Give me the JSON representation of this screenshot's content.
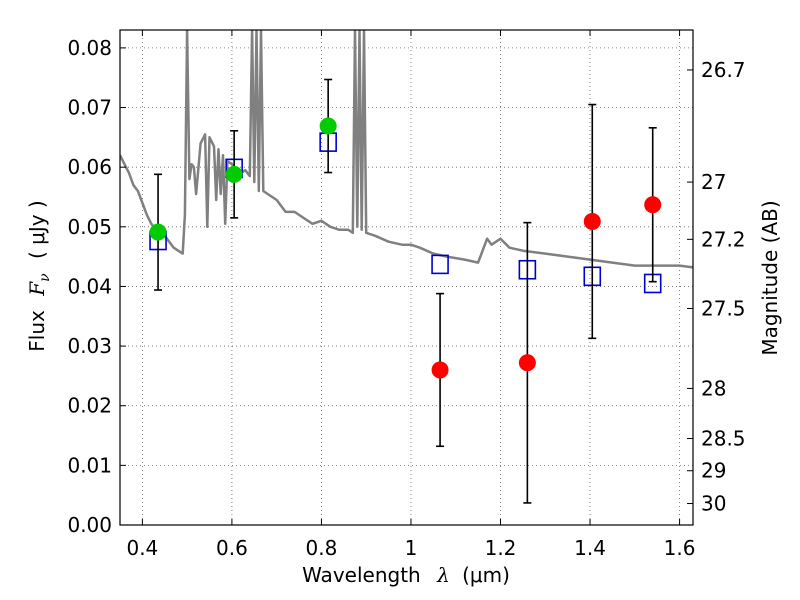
{
  "chart_data": {
    "type": "scatter",
    "xlabel_text": "Wavelength",
    "xlabel_symbol": "λ",
    "xlabel_unit": "(μm)",
    "ylabel_text": "Flux",
    "ylabel_symbol": "F",
    "ylabel_subscript": "ν",
    "ylabel_unit": "( μJy )",
    "y2label": "Magnitude (AB)",
    "xlim": [
      0.35,
      1.63
    ],
    "ylim": [
      0.0,
      0.083
    ],
    "grid": true,
    "x_ticks": [
      {
        "value": 0.4,
        "label": "0.4"
      },
      {
        "value": 0.6,
        "label": "0.6"
      },
      {
        "value": 0.8,
        "label": "0.8"
      },
      {
        "value": 1.0,
        "label": "1"
      },
      {
        "value": 1.2,
        "label": "1.2"
      },
      {
        "value": 1.4,
        "label": "1.4"
      },
      {
        "value": 1.6,
        "label": "1.6"
      }
    ],
    "y_ticks": [
      {
        "value": 0.0,
        "label": "0.00"
      },
      {
        "value": 0.01,
        "label": "0.01"
      },
      {
        "value": 0.02,
        "label": "0.02"
      },
      {
        "value": 0.03,
        "label": "0.03"
      },
      {
        "value": 0.04,
        "label": "0.04"
      },
      {
        "value": 0.05,
        "label": "0.05"
      },
      {
        "value": 0.06,
        "label": "0.06"
      },
      {
        "value": 0.07,
        "label": "0.07"
      },
      {
        "value": 0.08,
        "label": "0.08"
      }
    ],
    "mag_ticks": [
      {
        "flux": 0.0763,
        "label": "26.7"
      },
      {
        "flux": 0.0575,
        "label": "27"
      },
      {
        "flux": 0.0479,
        "label": "27.2"
      },
      {
        "flux": 0.0363,
        "label": "27.5"
      },
      {
        "flux": 0.0229,
        "label": "28"
      },
      {
        "flux": 0.0145,
        "label": "28.5"
      },
      {
        "flux": 0.0091,
        "label": "29"
      },
      {
        "flux": 0.0036,
        "label": "30"
      }
    ],
    "series": [
      {
        "name": "model-template-spectrum",
        "kind": "line",
        "color": "#808080",
        "x": [
          0.35,
          0.36,
          0.37,
          0.38,
          0.39,
          0.4,
          0.41,
          0.42,
          0.43,
          0.44,
          0.45,
          0.46,
          0.47,
          0.48,
          0.49,
          0.495,
          0.5,
          0.505,
          0.51,
          0.515,
          0.52,
          0.53,
          0.54,
          0.545,
          0.55,
          0.56,
          0.565,
          0.57,
          0.575,
          0.58,
          0.585,
          0.59,
          0.6,
          0.61,
          0.62,
          0.63,
          0.64,
          0.645,
          0.65,
          0.655,
          0.66,
          0.665,
          0.67,
          0.68,
          0.7,
          0.72,
          0.74,
          0.76,
          0.78,
          0.8,
          0.82,
          0.84,
          0.86,
          0.87,
          0.875,
          0.88,
          0.885,
          0.89,
          0.895,
          0.9,
          0.92,
          0.95,
          0.98,
          1.0,
          1.02,
          1.05,
          1.08,
          1.12,
          1.15,
          1.17,
          1.18,
          1.2,
          1.22,
          1.25,
          1.3,
          1.35,
          1.4,
          1.45,
          1.5,
          1.55,
          1.6,
          1.63
        ],
        "y": [
          0.062,
          0.0605,
          0.059,
          0.057,
          0.056,
          0.054,
          0.052,
          0.0505,
          0.0495,
          0.049,
          0.0485,
          0.0475,
          0.0465,
          0.046,
          0.0455,
          0.052,
          0.083,
          0.058,
          0.0605,
          0.06,
          0.0555,
          0.064,
          0.0655,
          0.05,
          0.065,
          0.0635,
          0.0545,
          0.063,
          0.0555,
          0.062,
          0.0505,
          0.061,
          0.0605,
          0.0595,
          0.059,
          0.0595,
          0.0585,
          0.083,
          0.0575,
          0.083,
          0.056,
          0.083,
          0.056,
          0.0555,
          0.0545,
          0.0525,
          0.0525,
          0.0515,
          0.0505,
          0.051,
          0.05,
          0.0495,
          0.0495,
          0.049,
          0.083,
          0.05,
          0.083,
          0.0495,
          0.083,
          0.049,
          0.0485,
          0.0475,
          0.047,
          0.047,
          0.0465,
          0.0455,
          0.045,
          0.0445,
          0.044,
          0.048,
          0.047,
          0.048,
          0.0465,
          0.046,
          0.0455,
          0.045,
          0.0445,
          0.044,
          0.0435,
          0.0435,
          0.0435,
          0.0432
        ]
      },
      {
        "name": "model-broadband-flux",
        "kind": "open-square",
        "color": "#0000cc",
        "x": [
          0.435,
          0.605,
          0.815,
          1.065,
          1.26,
          1.405,
          1.54
        ],
        "y": [
          0.0477,
          0.0598,
          0.0642,
          0.0437,
          0.0428,
          0.0417,
          0.0405
        ]
      },
      {
        "name": "detections",
        "kind": "filled-circle",
        "color": "#00cc00",
        "x": [
          0.435,
          0.605,
          0.815
        ],
        "y": [
          0.0491,
          0.0588,
          0.0669
        ],
        "err_low": [
          0.0097,
          0.0073,
          0.0078
        ],
        "err_high": [
          0.0097,
          0.0073,
          0.0078
        ]
      },
      {
        "name": "marginal-detections",
        "kind": "filled-circle",
        "color": "#ff0000",
        "x": [
          1.065,
          1.26,
          1.405,
          1.54
        ],
        "y": [
          0.026,
          0.0272,
          0.0509,
          0.0537
        ],
        "err_low": [
          0.0128,
          0.0235,
          0.0196,
          0.0129
        ],
        "err_high": [
          0.0128,
          0.0235,
          0.0196,
          0.0129
        ]
      }
    ]
  }
}
